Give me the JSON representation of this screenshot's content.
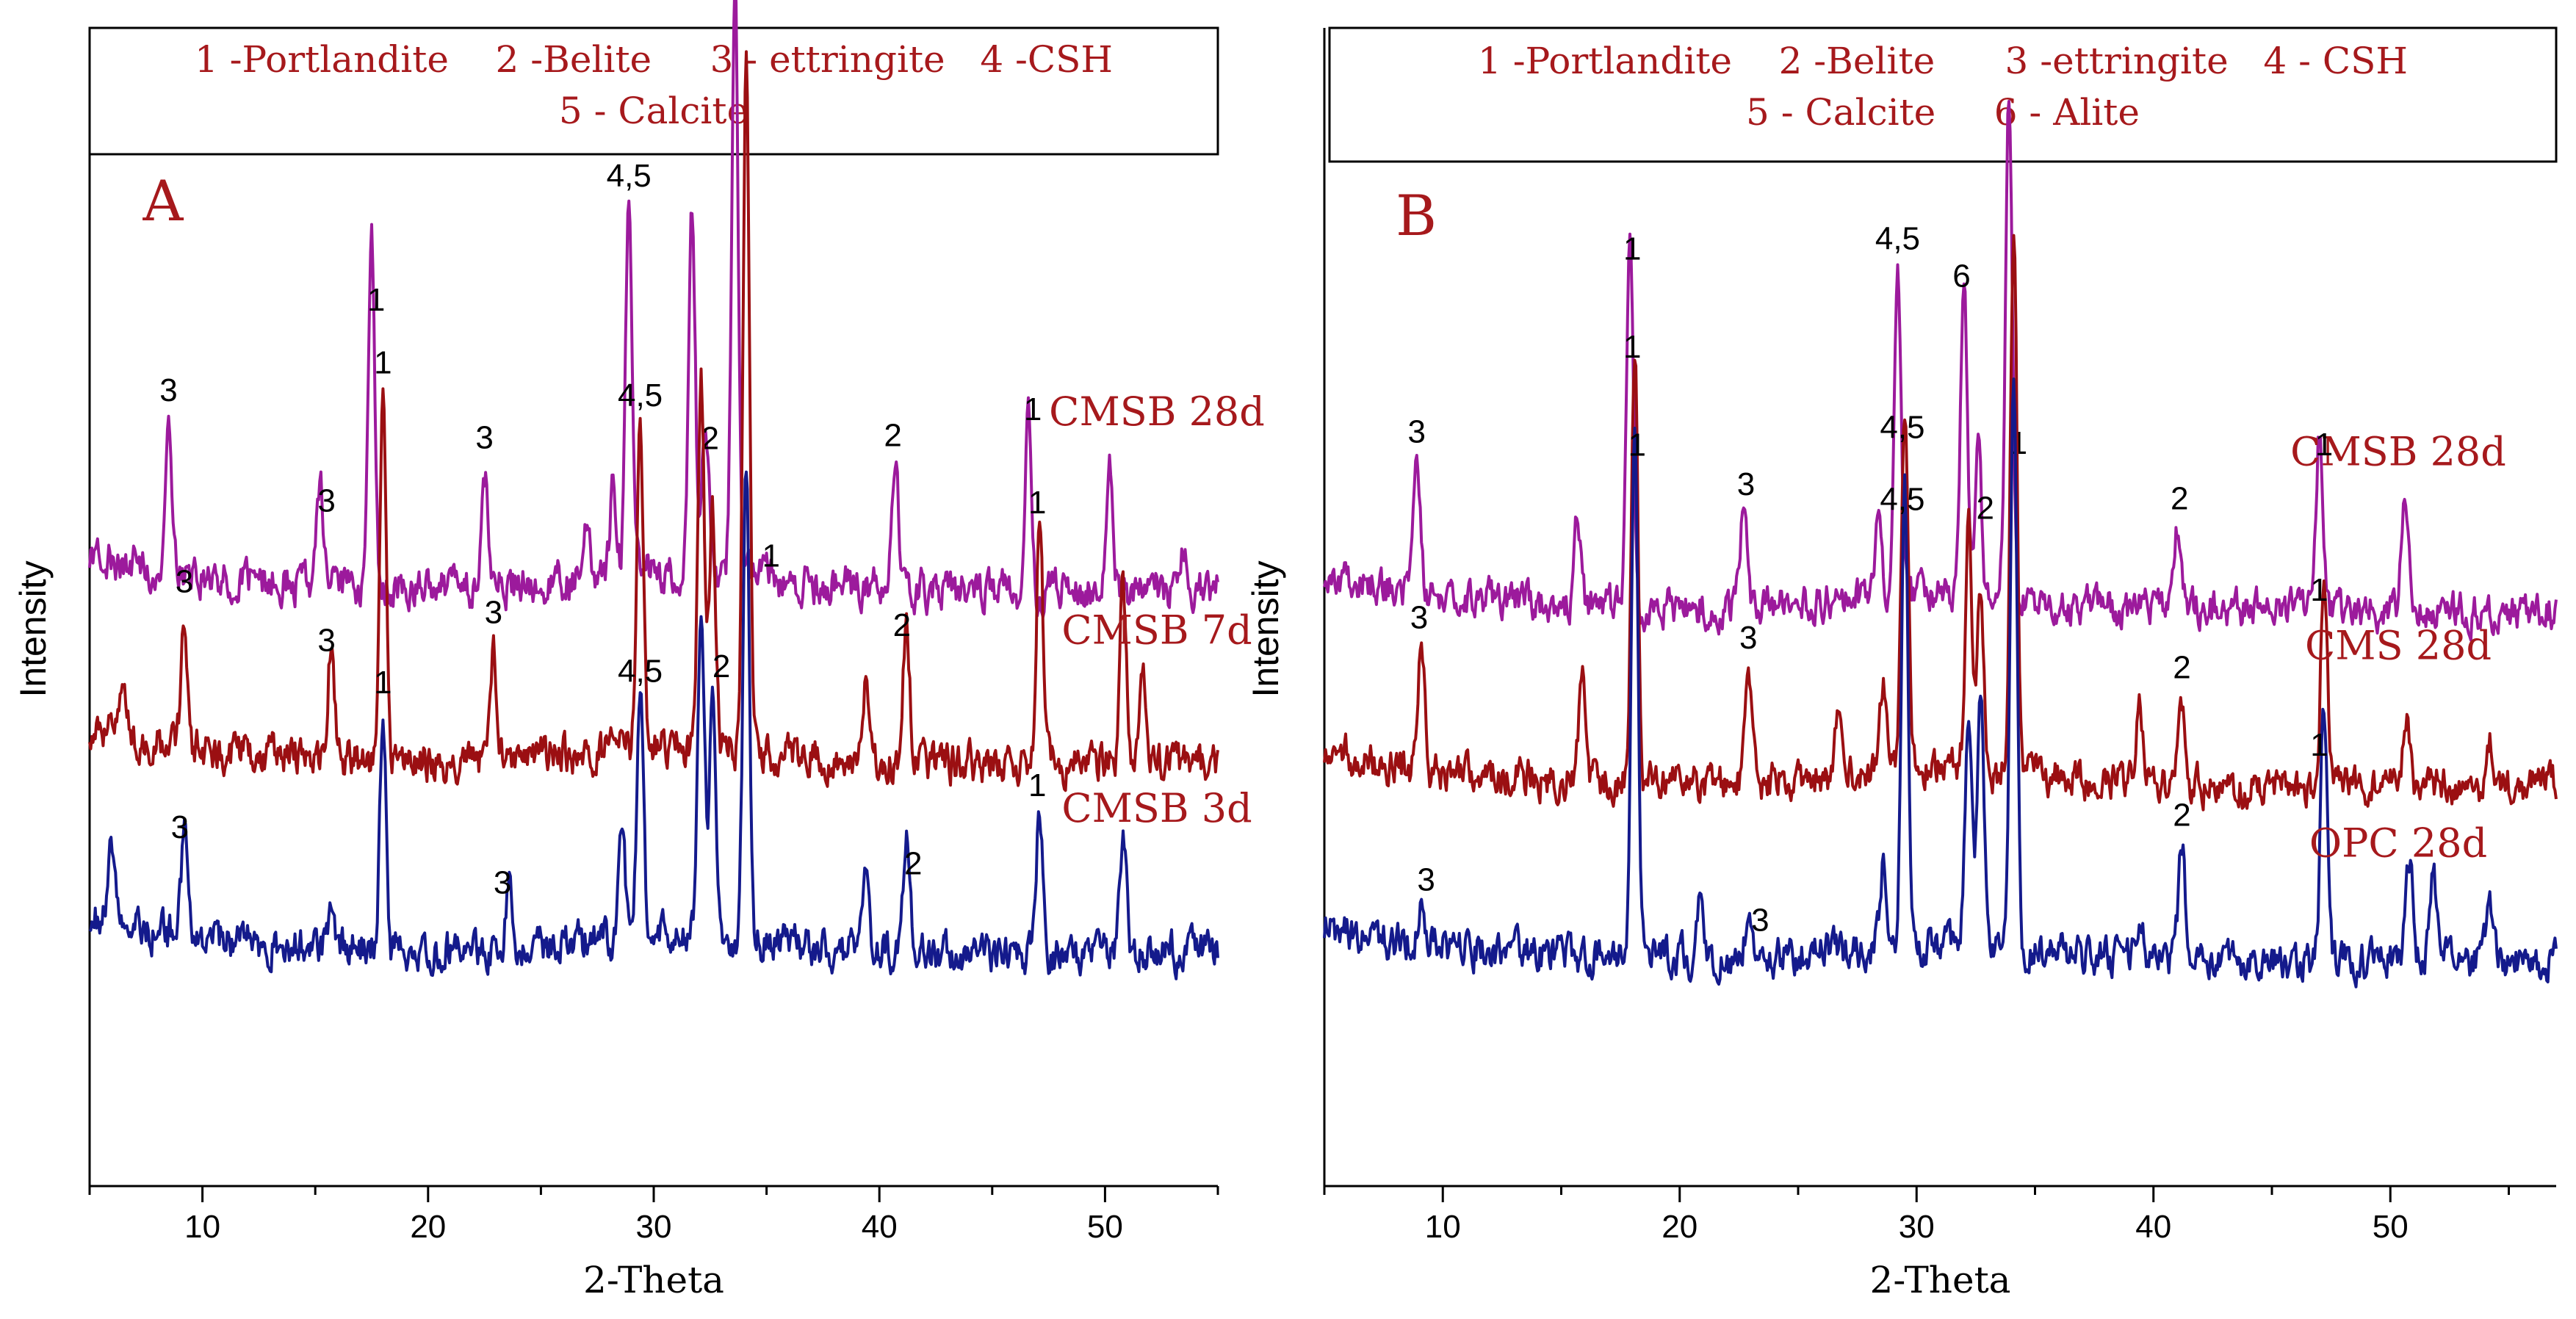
{
  "colors": {
    "label_red": "#a6191c",
    "trace_magenta": "#9c1a9c",
    "trace_darkred": "#9b0f12",
    "trace_navy": "#141a8c",
    "axis": "#000000"
  },
  "chart_data": [
    {
      "type": "line",
      "panel_letter": "A",
      "xlabel": "2-Theta",
      "ylabel": "Intensity",
      "xlim": [
        5,
        55
      ],
      "xticks": [
        10,
        20,
        30,
        40,
        50
      ],
      "legend_lines": [
        "1 -Portlandite    2 -Belite     3 - ettringite   4 -CSH",
        "5 - Calcite"
      ],
      "series": [
        {
          "name": "CMSB 28d",
          "color": "#9c1a9c",
          "baseline": 2.2,
          "peaks": [
            {
              "x": 8.5,
              "h": 1.0
            },
            {
              "x": 15.2,
              "h": 0.7
            },
            {
              "x": 17.5,
              "h": 2.4
            },
            {
              "x": 22.5,
              "h": 0.8
            },
            {
              "x": 27.0,
              "h": 0.4
            },
            {
              "x": 28.2,
              "h": 0.6
            },
            {
              "x": 28.9,
              "h": 2.6
            },
            {
              "x": 31.7,
              "h": 2.5
            },
            {
              "x": 32.3,
              "h": 1.1
            },
            {
              "x": 33.6,
              "h": 4.2
            },
            {
              "x": 40.7,
              "h": 0.9
            },
            {
              "x": 46.6,
              "h": 1.4
            },
            {
              "x": 50.2,
              "h": 0.9
            },
            {
              "x": 53.5,
              "h": 0.3
            }
          ],
          "annotations": [
            {
              "x": 8.5,
              "label": "3"
            },
            {
              "x": 15.5,
              "label": "3"
            },
            {
              "x": 17.7,
              "label": "1"
            },
            {
              "x": 22.5,
              "label": "3"
            },
            {
              "x": 28.9,
              "label": "4,5"
            },
            {
              "x": 32.5,
              "label": "2"
            },
            {
              "x": 35.2,
              "label": "1"
            },
            {
              "x": 40.6,
              "label": "2"
            },
            {
              "x": 46.8,
              "label": "1"
            }
          ]
        },
        {
          "name": "CMSB 7d",
          "color": "#9b0f12",
          "baseline": 1.0,
          "peaks": [
            {
              "x": 6.5,
              "h": 0.4
            },
            {
              "x": 9.2,
              "h": 0.9
            },
            {
              "x": 15.7,
              "h": 0.8
            },
            {
              "x": 18.0,
              "h": 2.5
            },
            {
              "x": 22.9,
              "h": 0.8
            },
            {
              "x": 29.4,
              "h": 2.3
            },
            {
              "x": 32.1,
              "h": 2.5
            },
            {
              "x": 32.6,
              "h": 1.6
            },
            {
              "x": 34.1,
              "h": 4.8
            },
            {
              "x": 39.4,
              "h": 0.5
            },
            {
              "x": 41.2,
              "h": 1.0
            },
            {
              "x": 47.1,
              "h": 1.7
            },
            {
              "x": 50.8,
              "h": 1.2
            },
            {
              "x": 51.7,
              "h": 0.6
            }
          ],
          "annotations": [
            {
              "x": 9.2,
              "label": "3"
            },
            {
              "x": 15.5,
              "label": "3"
            },
            {
              "x": 18.0,
              "label": "1"
            },
            {
              "x": 22.9,
              "label": "3"
            },
            {
              "x": 29.4,
              "label": "4,5"
            },
            {
              "x": 33.0,
              "label": "2"
            },
            {
              "x": 41.0,
              "label": "2"
            },
            {
              "x": 47.0,
              "label": "1"
            }
          ]
        },
        {
          "name": "CMSB 3d",
          "color": "#141a8c",
          "baseline": -0.3,
          "peaks": [
            {
              "x": 6.0,
              "h": 0.5
            },
            {
              "x": 9.2,
              "h": 0.7
            },
            {
              "x": 15.7,
              "h": 0.3
            },
            {
              "x": 18.0,
              "h": 1.6
            },
            {
              "x": 23.6,
              "h": 0.5
            },
            {
              "x": 28.6,
              "h": 0.7
            },
            {
              "x": 29.4,
              "h": 1.7
            },
            {
              "x": 32.1,
              "h": 2.3
            },
            {
              "x": 32.6,
              "h": 1.6
            },
            {
              "x": 34.1,
              "h": 3.2
            },
            {
              "x": 39.4,
              "h": 0.5
            },
            {
              "x": 41.2,
              "h": 0.8
            },
            {
              "x": 47.1,
              "h": 1.0
            },
            {
              "x": 50.8,
              "h": 0.8
            }
          ],
          "annotations": [
            {
              "x": 9.0,
              "label": "3"
            },
            {
              "x": 18.0,
              "label": "1"
            },
            {
              "x": 23.3,
              "label": "3"
            },
            {
              "x": 29.4,
              "label": "4,5"
            },
            {
              "x": 41.5,
              "label": "2"
            },
            {
              "x": 47.0,
              "label": "1"
            }
          ]
        }
      ]
    },
    {
      "type": "line",
      "panel_letter": "B",
      "xlabel": "2-Theta",
      "ylabel": "Intensity",
      "xlim": [
        5,
        57
      ],
      "xticks": [
        10,
        20,
        30,
        40,
        50
      ],
      "legend_lines": [
        "1 -Portlandite    2 -Belite      3 -ettringite   4 - CSH",
        "5 - Calcite     6 - Alite"
      ],
      "series": [
        {
          "name": "CMSB 28d",
          "color": "#9c1a9c",
          "baseline": 2.2,
          "peaks": [
            {
              "x": 8.9,
              "h": 0.9
            },
            {
              "x": 15.7,
              "h": 0.6
            },
            {
              "x": 17.9,
              "h": 2.5
            },
            {
              "x": 22.7,
              "h": 0.7
            },
            {
              "x": 28.4,
              "h": 0.6
            },
            {
              "x": 29.2,
              "h": 2.4
            },
            {
              "x": 32.0,
              "h": 2.3
            },
            {
              "x": 32.6,
              "h": 1.0
            },
            {
              "x": 33.9,
              "h": 3.5
            },
            {
              "x": 41.0,
              "h": 0.6
            },
            {
              "x": 47.0,
              "h": 1.3
            },
            {
              "x": 50.6,
              "h": 0.8
            }
          ],
          "annotations": [
            {
              "x": 8.9,
              "label": "3"
            },
            {
              "x": 18.0,
              "label": "1"
            },
            {
              "x": 22.8,
              "label": "3"
            },
            {
              "x": 29.2,
              "label": "4,5"
            },
            {
              "x": 31.9,
              "label": "6"
            },
            {
              "x": 32.9,
              "label": "2"
            },
            {
              "x": 34.3,
              "label": "1"
            },
            {
              "x": 41.1,
              "label": "2"
            },
            {
              "x": 47.2,
              "label": "1"
            }
          ]
        },
        {
          "name": "CMS 28d",
          "color": "#9b0f12",
          "baseline": 0.95,
          "peaks": [
            {
              "x": 9.1,
              "h": 0.9
            },
            {
              "x": 15.9,
              "h": 0.8
            },
            {
              "x": 18.1,
              "h": 3.1
            },
            {
              "x": 22.9,
              "h": 0.8
            },
            {
              "x": 26.7,
              "h": 0.4
            },
            {
              "x": 28.6,
              "h": 0.6
            },
            {
              "x": 29.5,
              "h": 2.5
            },
            {
              "x": 32.2,
              "h": 1.8
            },
            {
              "x": 32.7,
              "h": 1.3
            },
            {
              "x": 34.1,
              "h": 3.8
            },
            {
              "x": 39.4,
              "h": 0.6
            },
            {
              "x": 41.2,
              "h": 0.6
            },
            {
              "x": 47.2,
              "h": 1.6
            },
            {
              "x": 50.7,
              "h": 0.5
            },
            {
              "x": 54.2,
              "h": 0.3
            }
          ],
          "annotations": [
            {
              "x": 9.0,
              "label": "3"
            },
            {
              "x": 18.0,
              "label": "1"
            },
            {
              "x": 22.9,
              "label": "3"
            },
            {
              "x": 29.4,
              "label": "4,5"
            },
            {
              "x": 41.2,
              "label": "2"
            },
            {
              "x": 47.0,
              "label": "1"
            }
          ]
        },
        {
          "name": "OPC 28d",
          "color": "#141a8c",
          "baseline": -0.3,
          "peaks": [
            {
              "x": 9.1,
              "h": 0.3
            },
            {
              "x": 18.1,
              "h": 3.7
            },
            {
              "x": 20.9,
              "h": 0.5
            },
            {
              "x": 22.9,
              "h": 0.3
            },
            {
              "x": 28.6,
              "h": 0.6
            },
            {
              "x": 29.5,
              "h": 3.3
            },
            {
              "x": 32.2,
              "h": 1.7
            },
            {
              "x": 32.7,
              "h": 1.7
            },
            {
              "x": 34.1,
              "h": 4.1
            },
            {
              "x": 39.4,
              "h": 0.3
            },
            {
              "x": 41.2,
              "h": 0.8
            },
            {
              "x": 47.2,
              "h": 1.8
            },
            {
              "x": 50.8,
              "h": 0.7
            },
            {
              "x": 51.8,
              "h": 0.6
            },
            {
              "x": 54.2,
              "h": 0.4
            }
          ],
          "annotations": [
            {
              "x": 9.3,
              "label": "3"
            },
            {
              "x": 18.2,
              "label": "1"
            },
            {
              "x": 23.4,
              "label": "3"
            },
            {
              "x": 29.4,
              "label": "4,5"
            },
            {
              "x": 41.2,
              "label": "2"
            },
            {
              "x": 47.0,
              "label": "1"
            }
          ]
        }
      ]
    }
  ]
}
